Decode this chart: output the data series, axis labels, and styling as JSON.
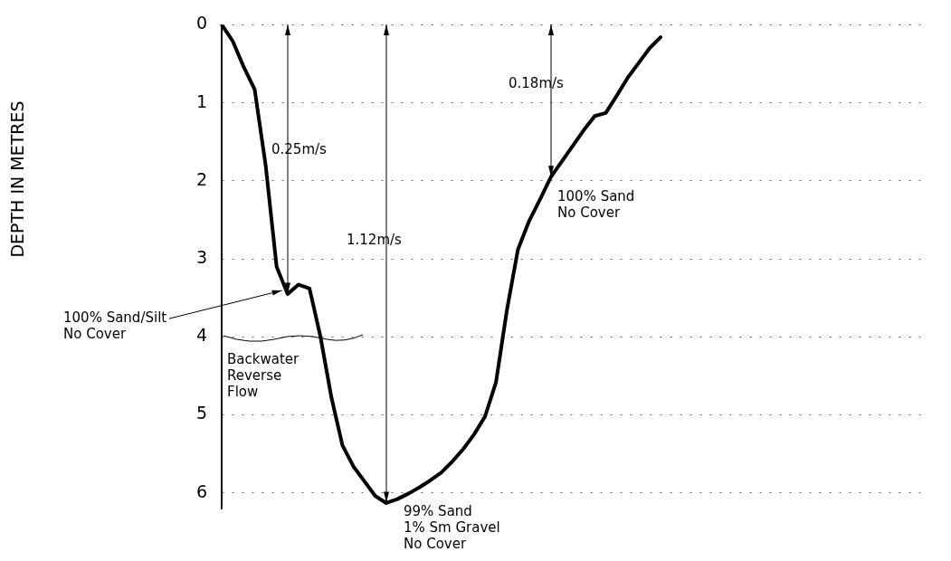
{
  "chart_data": {
    "type": "line",
    "categories": [
      null,
      null,
      null,
      null,
      null,
      null,
      null,
      null,
      null,
      null,
      null,
      null,
      null,
      null,
      null,
      null,
      null,
      null,
      null,
      null,
      null,
      null,
      null,
      null,
      null,
      null,
      null,
      null,
      null,
      null,
      null,
      null,
      null,
      null,
      null,
      null,
      null,
      null,
      null,
      null,
      null,
      null,
      null,
      null,
      null,
      null,
      null,
      null,
      null,
      null,
      null,
      null,
      null,
      null,
      null,
      null,
      null,
      null,
      null,
      null,
      null,
      null,
      null,
      null,
      null
    ],
    "values": [
      0,
      0.21,
      0.54,
      0.83,
      1.8,
      3.1,
      3.45,
      3.33,
      3.38,
      4.0,
      4.78,
      5.39,
      5.66,
      5.85,
      6.04,
      6.13,
      6.08,
      6.01,
      5.93,
      5.84,
      5.74,
      5.6,
      5.44,
      5.25,
      5.02,
      4.58,
      3.65,
      2.88,
      2.52,
      2.24,
      1.95,
      1.75,
      1.55,
      1.35,
      1.17,
      1.13,
      0.91,
      0.68,
      0.49,
      0.3,
      0.16,
      null,
      null,
      null,
      null,
      null,
      null,
      null,
      null,
      null,
      null,
      null,
      null,
      null,
      null,
      null,
      null,
      null,
      null,
      null,
      null,
      null,
      null,
      null,
      null
    ],
    "color": "#000000",
    "ylim": [
      6.2,
      0
    ],
    "yticks": [
      0,
      1,
      2,
      3,
      4,
      5,
      6
    ],
    "grid": "y",
    "tick_labels": "y",
    "annotations": [
      "0.25m/s",
      "1.12m/s",
      "0.18m/s",
      "100% Sand/Silt\nNo Cover",
      "Backwater\nReverse\nFlow",
      "100% Sand\nNo Cover",
      "99% Sand\n1% Sm Gravel\nNo Cover",
      "DEPTH IN METRES"
    ]
  }
}
